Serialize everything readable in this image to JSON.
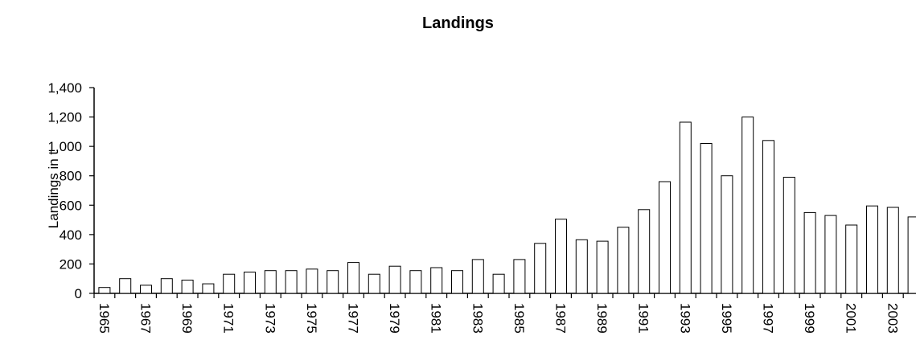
{
  "chart_data": {
    "type": "bar",
    "title": "Landings",
    "xlabel": "",
    "ylabel": "Landings in t",
    "ylim": [
      0,
      1400
    ],
    "yticks": [
      "0",
      "200",
      "400",
      "600",
      "800",
      "1,000",
      "1,200",
      "1,400"
    ],
    "grid": false,
    "legend": "none",
    "bar_fill": "#ffffff",
    "bar_stroke": "#000000",
    "categories": [
      "1965",
      "1966",
      "1967",
      "1968",
      "1969",
      "1970",
      "1971",
      "1972",
      "1973",
      "1974",
      "1975",
      "1976",
      "1977",
      "1978",
      "1979",
      "1980",
      "1981",
      "1982",
      "1983",
      "1984",
      "1985",
      "1986",
      "1987",
      "1988",
      "1989",
      "1990",
      "1991",
      "1992",
      "1993",
      "1994",
      "1995",
      "1996",
      "1997",
      "1998",
      "1999",
      "2000",
      "2001",
      "2002",
      "2003",
      "2004"
    ],
    "xtick_labels": [
      "1965",
      "1967",
      "1969",
      "1971",
      "1973",
      "1975",
      "1977",
      "1979",
      "1981",
      "1983",
      "1985",
      "1987",
      "1989",
      "1991",
      "1993",
      "1995",
      "1997",
      "1999",
      "2001",
      "2003"
    ],
    "values": [
      40,
      100,
      55,
      100,
      90,
      65,
      130,
      145,
      155,
      155,
      165,
      155,
      210,
      130,
      185,
      155,
      175,
      155,
      230,
      130,
      230,
      340,
      505,
      365,
      355,
      450,
      570,
      760,
      1165,
      1020,
      800,
      1200,
      1040,
      790,
      550,
      530,
      465,
      595,
      585,
      520
    ]
  }
}
